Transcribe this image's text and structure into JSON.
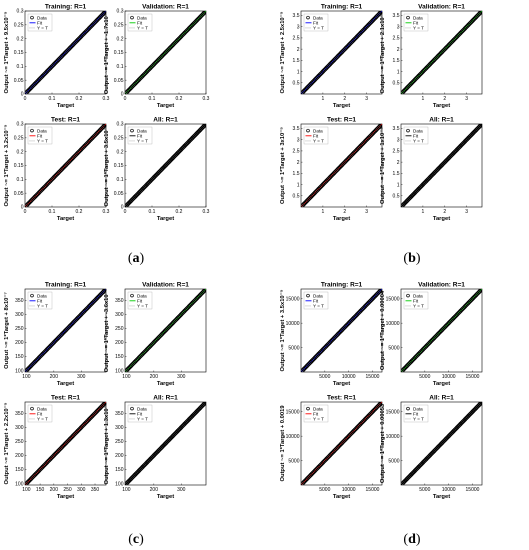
{
  "captions": [
    "(a)",
    "(b)",
    "(c)",
    "(d)"
  ],
  "legend_labels": [
    "Data",
    "Fit",
    "Y = T"
  ],
  "colors": {
    "data": "#000000",
    "training": "#0000ff",
    "validation": "#00cc00",
    "test": "#ff0000",
    "all": "#000000",
    "yt": "#888888"
  },
  "chart_data": [
    {
      "type": "scatter",
      "group": "(a)",
      "title": "Training: R=1",
      "xlabel": "Target",
      "ylabel": "Output ~= 1*Target + 9.5x10⁻⁵",
      "fit_color": "training",
      "xlim": [
        0,
        0.3
      ],
      "ylim": [
        0,
        0.3
      ],
      "xticks": [
        "0",
        "0.1",
        "0.2",
        "0.3"
      ],
      "yticks": [
        "0",
        "0.05",
        "0.1",
        "0.15",
        "0.2",
        "0.25",
        "0.3"
      ],
      "legend": [
        "Data",
        "Fit",
        "Y = T"
      ],
      "fit": {
        "slope": 1,
        "intercept": 0
      }
    },
    {
      "type": "scatter",
      "group": "(a)",
      "title": "Validation: R=1",
      "xlabel": "Target",
      "ylabel": "Output ~= 1*Target + -1.7x10⁻⁷",
      "fit_color": "validation",
      "xlim": [
        0,
        0.3
      ],
      "ylim": [
        0,
        0.3
      ],
      "xticks": [
        "0",
        "0.1",
        "0.2",
        "0.3"
      ],
      "yticks": [
        "0",
        "0.05",
        "0.1",
        "0.15",
        "0.2",
        "0.25",
        "0.3"
      ],
      "legend": [
        "Data",
        "Fit",
        "Y = T"
      ],
      "fit": {
        "slope": 1,
        "intercept": 0
      }
    },
    {
      "type": "scatter",
      "group": "(a)",
      "title": "Test: R=1",
      "xlabel": "Target",
      "ylabel": "Output ~= 1*Target + 3.2x10⁻⁵",
      "fit_color": "test",
      "xlim": [
        0,
        0.3
      ],
      "ylim": [
        0,
        0.3
      ],
      "xticks": [
        "0",
        "0.1",
        "0.2",
        "0.3"
      ],
      "yticks": [
        "0",
        "0.05",
        "0.1",
        "0.15",
        "0.2",
        "0.25",
        "0.3"
      ],
      "legend": [
        "Data",
        "Fit",
        "Y = T"
      ],
      "fit": {
        "slope": 1,
        "intercept": 0
      }
    },
    {
      "type": "scatter",
      "group": "(a)",
      "title": "All: R=1",
      "xlabel": "Target",
      "ylabel": "Output ~= 1*Target + 3.5x10⁻⁵",
      "fit_color": "all",
      "xlim": [
        0,
        0.3
      ],
      "ylim": [
        0,
        0.3
      ],
      "xticks": [
        "0",
        "0.1",
        "0.2",
        "0.3"
      ],
      "yticks": [
        "0",
        "0.05",
        "0.1",
        "0.15",
        "0.2",
        "0.25",
        "0.3"
      ],
      "legend": [
        "Data",
        "Fit",
        "Y = T"
      ],
      "fit": {
        "slope": 1,
        "intercept": 0
      }
    },
    {
      "type": "scatter",
      "group": "(b)",
      "title": "Training: R=1",
      "xlabel": "Target",
      "ylabel": "Output ~= 1*Target + 2.5x10⁻⁵",
      "fit_color": "training",
      "xlim": [
        0,
        3.7
      ],
      "ylim": [
        0,
        3.7
      ],
      "xticks": [
        "1",
        "2",
        "3"
      ],
      "yticks": [
        "0.5",
        "1",
        "1.5",
        "2",
        "2.5",
        "3",
        "3.5"
      ],
      "legend": [
        "Data",
        "Fit",
        "Y = T"
      ],
      "fit": {
        "slope": 1,
        "intercept": 0
      }
    },
    {
      "type": "scatter",
      "group": "(b)",
      "title": "Validation: R=1",
      "xlabel": "Target",
      "ylabel": "Output ~= 1*Target + 2.1x10⁻⁵",
      "fit_color": "validation",
      "xlim": [
        0,
        3.7
      ],
      "ylim": [
        0,
        3.7
      ],
      "xticks": [
        "1",
        "2",
        "3"
      ],
      "yticks": [
        "0.5",
        "1",
        "1.5",
        "2",
        "2.5",
        "3",
        "3.5"
      ],
      "legend": [
        "Data",
        "Fit",
        "Y = T"
      ],
      "fit": {
        "slope": 1,
        "intercept": 0
      }
    },
    {
      "type": "scatter",
      "group": "(b)",
      "title": "Test: R=1",
      "xlabel": "Target",
      "ylabel": "Output ~= 1*Target + 3x10⁻⁵",
      "fit_color": "test",
      "xlim": [
        0,
        3.7
      ],
      "ylim": [
        0,
        3.7
      ],
      "xticks": [
        "1",
        "2",
        "3"
      ],
      "yticks": [
        "0.5",
        "1",
        "1.5",
        "2",
        "2.5",
        "3",
        "3.5"
      ],
      "legend": [
        "Data",
        "Fit",
        "Y = T"
      ],
      "fit": {
        "slope": 1,
        "intercept": 0
      }
    },
    {
      "type": "scatter",
      "group": "(b)",
      "title": "All: R=1",
      "xlabel": "Target",
      "ylabel": "Output ~= 1*Target + 1x10⁻⁵",
      "fit_color": "all",
      "xlim": [
        0,
        3.7
      ],
      "ylim": [
        0,
        3.7
      ],
      "xticks": [
        "1",
        "2",
        "3"
      ],
      "yticks": [
        "0.5",
        "1",
        "1.5",
        "2",
        "2.5",
        "3",
        "3.5"
      ],
      "legend": [
        "Data",
        "Fit",
        "Y = T"
      ],
      "fit": {
        "slope": 1,
        "intercept": 0
      }
    },
    {
      "type": "scatter",
      "group": "(c)",
      "title": "Training: R=1",
      "xlabel": "Target",
      "ylabel": "Output ~= 1*Target + 8x10⁻⁷",
      "fit_color": "training",
      "xlim": [
        95,
        390
      ],
      "ylim": [
        95,
        390
      ],
      "xticks": [
        "100",
        "200",
        "300"
      ],
      "yticks": [
        "100",
        "150",
        "200",
        "250",
        "300",
        "350"
      ],
      "legend": [
        "Data",
        "Fit",
        "Y = T"
      ],
      "fit": {
        "slope": 1,
        "intercept": 0
      }
    },
    {
      "type": "scatter",
      "group": "(c)",
      "title": "Validation: R=1",
      "xlabel": "Target",
      "ylabel": "Output ~= 1*Target + -3.6x10⁻⁵",
      "fit_color": "validation",
      "xlim": [
        95,
        390
      ],
      "ylim": [
        95,
        390
      ],
      "xticks": [
        "100",
        "200",
        "300"
      ],
      "yticks": [
        "100",
        "150",
        "200",
        "250",
        "300",
        "350"
      ],
      "legend": [
        "Data",
        "Fit",
        "Y = T"
      ],
      "fit": {
        "slope": 1,
        "intercept": 0
      }
    },
    {
      "type": "scatter",
      "group": "(c)",
      "title": "Test: R=1",
      "xlabel": "Target",
      "ylabel": "Output ~= 1*Target + 2.2x10⁻⁵",
      "fit_color": "test",
      "xlim": [
        95,
        390
      ],
      "ylim": [
        95,
        390
      ],
      "xticks": [
        "100",
        "150",
        "200",
        "250",
        "300",
        "350"
      ],
      "yticks": [
        "100",
        "150",
        "200",
        "250",
        "300",
        "350"
      ],
      "legend": [
        "Data",
        "Fit",
        "Y = T"
      ],
      "fit": {
        "slope": 1,
        "intercept": 0
      }
    },
    {
      "type": "scatter",
      "group": "(c)",
      "title": "All: R=1",
      "xlabel": "Target",
      "ylabel": "Output ~= 1*Target + 1.3x10⁻⁵",
      "fit_color": "all",
      "xlim": [
        95,
        390
      ],
      "ylim": [
        95,
        390
      ],
      "xticks": [
        "100",
        "200",
        "300"
      ],
      "yticks": [
        "100",
        "150",
        "200",
        "250",
        "300",
        "350"
      ],
      "legend": [
        "Data",
        "Fit",
        "Y = T"
      ],
      "fit": {
        "slope": 1,
        "intercept": 0
      }
    },
    {
      "type": "scatter",
      "group": "(d)",
      "title": "Training: R=1",
      "xlabel": "Target",
      "ylabel": "Output ~= 1*Target + 3.5x10⁻⁵",
      "fit_color": "training",
      "xlim": [
        0,
        17000
      ],
      "ylim": [
        0,
        17000
      ],
      "xticks": [
        "5000",
        "10000",
        "15000"
      ],
      "yticks": [
        "5000",
        "10000",
        "15000"
      ],
      "legend": [
        "Data",
        "Fit",
        "Y = T"
      ],
      "fit": {
        "slope": 1,
        "intercept": 0
      }
    },
    {
      "type": "scatter",
      "group": "(d)",
      "title": "Validation: R=1",
      "xlabel": "Target",
      "ylabel": "Output ~= 1*Target + 0.00004",
      "fit_color": "validation",
      "xlim": [
        0,
        17000
      ],
      "ylim": [
        0,
        17000
      ],
      "xticks": [
        "5000",
        "10000",
        "15000"
      ],
      "yticks": [
        "5000",
        "10000",
        "15000"
      ],
      "legend": [
        "Data",
        "Fit",
        "Y = T"
      ],
      "fit": {
        "slope": 1,
        "intercept": 0
      }
    },
    {
      "type": "scatter",
      "group": "(d)",
      "title": "Test: R=1",
      "xlabel": "Target",
      "ylabel": "Output ~= 1*Target + 0.0019",
      "fit_color": "test",
      "xlim": [
        0,
        17000
      ],
      "ylim": [
        0,
        17000
      ],
      "xticks": [
        "5000",
        "10000",
        "15000"
      ],
      "yticks": [
        "5000",
        "10000",
        "15000"
      ],
      "legend": [
        "Data",
        "Fit",
        "Y = T"
      ],
      "fit": {
        "slope": 1,
        "intercept": 0
      }
    },
    {
      "type": "scatter",
      "group": "(d)",
      "title": "All: R=1",
      "xlabel": "Target",
      "ylabel": "Output ~= 1*Target + 0.00053",
      "fit_color": "all",
      "xlim": [
        0,
        17000
      ],
      "ylim": [
        0,
        17000
      ],
      "xticks": [
        "5000",
        "10000",
        "15000"
      ],
      "yticks": [
        "5000",
        "10000",
        "15000"
      ],
      "legend": [
        "Data",
        "Fit",
        "Y = T"
      ],
      "fit": {
        "slope": 1,
        "intercept": 0
      }
    }
  ]
}
